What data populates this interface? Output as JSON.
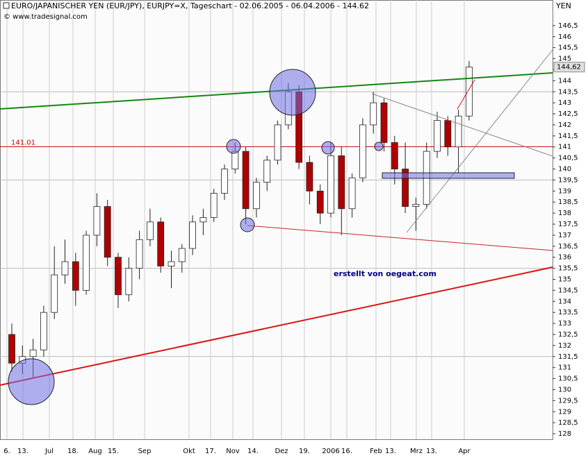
{
  "chart_data": {
    "type": "candlestick",
    "title": "EURO/JAPANISCHER YEN (EUR/JPY), EURJPY=X, Tageschart - 02.06.2005 - 06.04.2006 - 144.62",
    "source": "© www.tradesignal.com",
    "y_axis_label": "YEN",
    "annotation": "erstellt von oegeat.com",
    "hline": {
      "value": 141.01,
      "label": "141.01",
      "color": "#cc0000"
    },
    "last_price_label": "144,62",
    "x_labels": [
      "6.",
      "13.",
      "Jul",
      "18.",
      "Aug",
      "15.",
      "Sep",
      "Okt",
      "17.",
      "Nov",
      "14.",
      "Dez",
      "19.",
      "2006",
      "16.",
      "Feb",
      "13.",
      "Mrz",
      "13.",
      "Apr"
    ],
    "series": [
      {
        "open": [
          132.5,
          131.2,
          131.5,
          131.8,
          133.5,
          135.2,
          135.8,
          134.5,
          137,
          138.3,
          136,
          134.3,
          135.5,
          136.8,
          137.6,
          135.6,
          135.8,
          136.4,
          137.6,
          137.8,
          138.9,
          140,
          140.8,
          138.2,
          139.4,
          140.4,
          142,
          143.5,
          140.3,
          139,
          138,
          140.6,
          138.2,
          139.6,
          142,
          143,
          141.2,
          140,
          138.3,
          138.4,
          140.8,
          142.2,
          141,
          142.4
        ],
        "high": [
          133,
          132,
          132.3,
          133.8,
          136.5,
          136.8,
          136.2,
          137.2,
          138.9,
          138.6,
          136.2,
          136,
          137.2,
          138.2,
          137.8,
          136.3,
          136.6,
          137.9,
          138.2,
          139.1,
          140.2,
          141.2,
          141,
          139.6,
          140.6,
          142.2,
          143.9,
          143.8,
          140.6,
          139.3,
          141.2,
          141,
          139.8,
          142.3,
          143.5,
          143.2,
          141.5,
          141.2,
          138.7,
          141.2,
          142.6,
          142.4,
          142.7,
          144.9
        ],
        "low": [
          130.8,
          130.7,
          130.5,
          131.5,
          133.2,
          134.8,
          133.8,
          134.3,
          136.5,
          135.6,
          133.7,
          134,
          135,
          136.5,
          135.3,
          134.6,
          135.3,
          136.1,
          137,
          137.6,
          138.6,
          139.8,
          137.5,
          137.8,
          139,
          140.2,
          141.8,
          140,
          138.4,
          137.5,
          137.8,
          137,
          137.8,
          139.4,
          141.6,
          140.8,
          139.3,
          138,
          137.2,
          138.2,
          140.5,
          140.6,
          139.8,
          142.2
        ],
        "close": [
          131.2,
          131.5,
          131.8,
          133.5,
          135.2,
          135.8,
          134.5,
          137,
          138.3,
          136,
          134.3,
          135.5,
          136.8,
          137.6,
          135.6,
          135.8,
          136.4,
          137.6,
          137.8,
          138.9,
          140,
          140.8,
          138.2,
          139.4,
          140.4,
          142,
          143.5,
          140.3,
          139,
          138,
          140.6,
          138.2,
          139.6,
          142,
          143,
          141.2,
          140,
          138.3,
          138.4,
          140.8,
          142.2,
          141,
          142.4,
          144.62
        ],
        "up_color": "#ffffff",
        "down_color": "#b00000",
        "wick_color": "#222222"
      }
    ],
    "ylim": [
      127.75,
      147.66
    ],
    "yticks": [
      128,
      {
        "value": 128.5,
        "label": "128,5"
      },
      129,
      {
        "value": 129.5,
        "label": "129,5"
      },
      130,
      {
        "value": 130.5,
        "label": "130,5"
      },
      131,
      {
        "value": 131.5,
        "label": "131,5"
      },
      132,
      {
        "value": 132.5,
        "label": "132,5"
      },
      133,
      {
        "value": 133.5,
        "label": "133,5"
      },
      134,
      {
        "value": 134.5,
        "label": "134,5"
      },
      135,
      {
        "value": 135.5,
        "label": "135,5"
      },
      136,
      {
        "value": 136.5,
        "label": "136,5"
      },
      137,
      {
        "value": 137.5,
        "label": "137,5"
      },
      138,
      {
        "value": 138.5,
        "label": "138,5"
      },
      139,
      {
        "value": 139.5,
        "label": "139,5"
      },
      140,
      {
        "value": 140.5,
        "label": "140,5"
      },
      141,
      {
        "value": 141.5,
        "label": "141,5"
      },
      142,
      {
        "value": 142.5,
        "label": "142,5"
      },
      143,
      {
        "value": 143.5,
        "label": "143,5"
      },
      144,
      {
        "value": 144.5,
        "label": "144,5"
      },
      145,
      {
        "value": 145.5,
        "label": "145,5"
      },
      146,
      {
        "value": 146.5,
        "label": "146,5"
      }
    ],
    "grid": true
  }
}
